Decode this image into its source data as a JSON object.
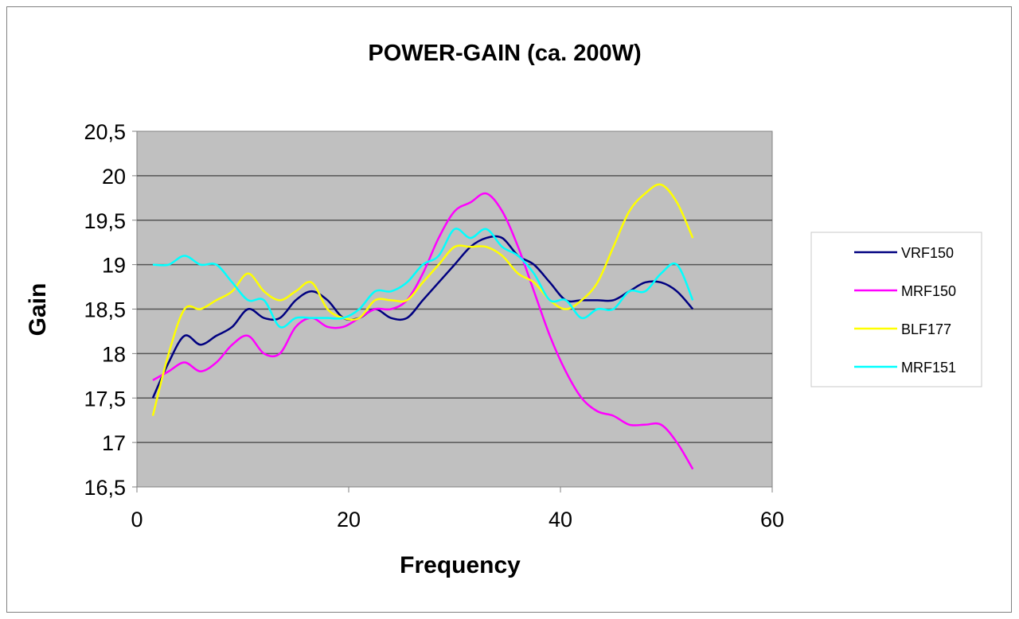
{
  "chart_data": {
    "type": "line",
    "title": "POWER-GAIN (ca. 200W)",
    "xlabel": "Frequency",
    "ylabel": "Gain",
    "xlim": [
      0,
      60
    ],
    "ylim": [
      16.5,
      20.5
    ],
    "xticks": [
      0,
      20,
      40,
      60
    ],
    "xtick_labels": [
      "0",
      "20",
      "40",
      "60"
    ],
    "yticks": [
      16.5,
      17,
      17.5,
      18,
      18.5,
      19,
      19.5,
      20,
      20.5
    ],
    "ytick_labels": [
      "16,5",
      "17",
      "17,5",
      "18",
      "18,5",
      "19",
      "19,5",
      "20",
      "20,5"
    ],
    "grid": "horizontal",
    "legend_position": "right",
    "x": [
      1.5,
      3,
      4.5,
      6,
      7.5,
      9,
      10.5,
      12,
      13.5,
      15,
      16.5,
      18,
      19.5,
      21,
      22.5,
      24,
      25.5,
      27,
      28.5,
      30,
      31.5,
      33,
      34.5,
      36,
      37.5,
      39,
      40.5,
      42,
      43.5,
      45,
      46.5,
      48,
      49.5,
      51,
      52.5
    ],
    "series": [
      {
        "name": "VRF150",
        "color": "#000080",
        "values": [
          17.5,
          17.9,
          18.2,
          18.1,
          18.2,
          18.3,
          18.5,
          18.4,
          18.4,
          18.6,
          18.7,
          18.6,
          18.4,
          18.4,
          18.5,
          18.4,
          18.4,
          18.6,
          18.8,
          19.0,
          19.2,
          19.3,
          19.3,
          19.1,
          19.0,
          18.8,
          18.6,
          18.6,
          18.6,
          18.6,
          18.7,
          18.8,
          18.8,
          18.7,
          18.5
        ]
      },
      {
        "name": "MRF150",
        "color": "#ff00ff",
        "values": [
          17.7,
          17.8,
          17.9,
          17.8,
          17.9,
          18.1,
          18.2,
          18.0,
          18.0,
          18.3,
          18.4,
          18.3,
          18.3,
          18.4,
          18.5,
          18.5,
          18.6,
          18.9,
          19.3,
          19.6,
          19.7,
          19.8,
          19.6,
          19.2,
          18.7,
          18.2,
          17.8,
          17.5,
          17.35,
          17.3,
          17.2,
          17.2,
          17.2,
          17.0,
          16.7
        ]
      },
      {
        "name": "BLF177",
        "color": "#ffff00",
        "values": [
          17.3,
          18.0,
          18.5,
          18.5,
          18.6,
          18.7,
          18.9,
          18.7,
          18.6,
          18.7,
          18.8,
          18.5,
          18.4,
          18.4,
          18.6,
          18.6,
          18.6,
          18.8,
          19.0,
          19.2,
          19.2,
          19.2,
          19.1,
          18.9,
          18.8,
          18.6,
          18.5,
          18.6,
          18.8,
          19.2,
          19.6,
          19.8,
          19.9,
          19.7,
          19.3
        ]
      },
      {
        "name": "MRF151",
        "color": "#00ffff",
        "values": [
          19.0,
          19.0,
          19.1,
          19.0,
          19.0,
          18.8,
          18.6,
          18.6,
          18.3,
          18.4,
          18.4,
          18.4,
          18.4,
          18.5,
          18.7,
          18.7,
          18.8,
          19.0,
          19.1,
          19.4,
          19.3,
          19.4,
          19.2,
          19.1,
          18.9,
          18.6,
          18.6,
          18.4,
          18.5,
          18.5,
          18.7,
          18.7,
          18.9,
          19.0,
          18.6
        ]
      }
    ],
    "plot_background": "#c0c0c0"
  }
}
